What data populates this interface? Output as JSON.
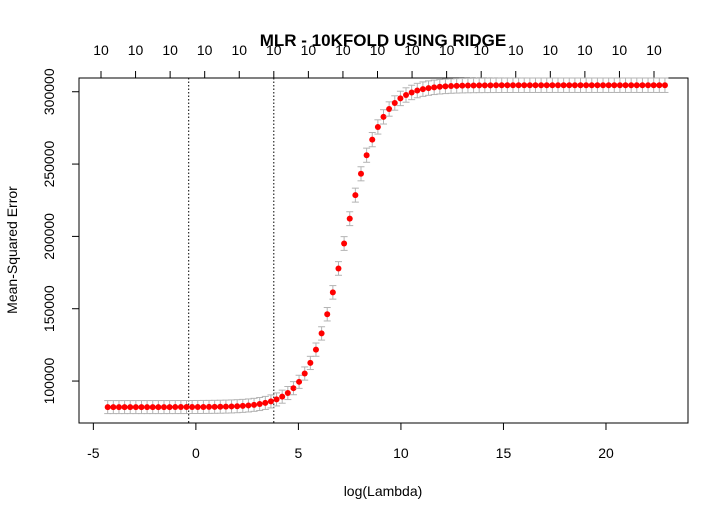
{
  "chart_data": {
    "type": "scatter",
    "title": "MLR - 10KFOLD USING RIDGE",
    "xlabel": "log(Lambda)",
    "ylabel": "Mean-Squared Error",
    "xlim": [
      -5.7,
      24.0
    ],
    "ylim": [
      71000,
      309500
    ],
    "x_ticks": [
      -5,
      0,
      5,
      10,
      15,
      20
    ],
    "x_tick_labels": [
      "-5",
      "0",
      "5",
      "10",
      "15",
      "20"
    ],
    "y_ticks": [
      100000,
      150000,
      200000,
      250000,
      300000
    ],
    "y_tick_labels": [
      "100000",
      "150000",
      "200000",
      "250000",
      "300000"
    ],
    "top_axis_label": "10",
    "top_axis_count": 17,
    "vlines": [
      -0.35,
      3.8
    ],
    "vline_style": "dotted",
    "grid": false,
    "legend": "none",
    "point_color": "#ff0000",
    "errorbar_color": "#b3b3b3",
    "series": [
      {
        "x_start": -4.3,
        "x_step": 0.2745,
        "n_points": 100,
        "y_min": 82000,
        "y_max": 304500,
        "transition_center": 7.2,
        "transition_scale": 0.88,
        "se_min": 4500,
        "se_max": 5000
      }
    ]
  }
}
